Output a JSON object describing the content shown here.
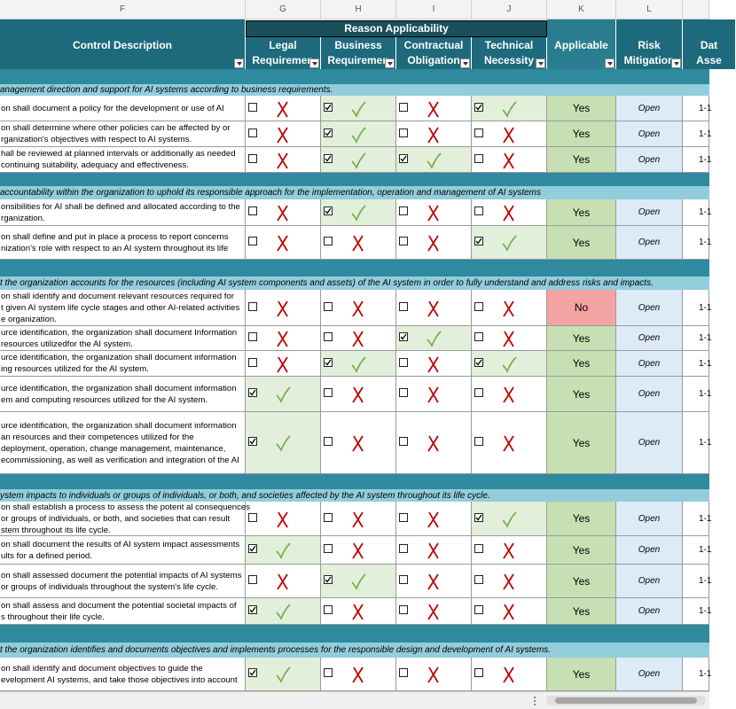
{
  "columns": [
    "F",
    "G",
    "H",
    "I",
    "J",
    "K",
    "L"
  ],
  "header": {
    "control": "Control Description",
    "group": "Reason Applicability",
    "cols": [
      [
        "Legal",
        "Requiremen"
      ],
      [
        "Business",
        "Requiremen"
      ],
      [
        "Contractual",
        "Obligation"
      ],
      [
        "Technical",
        "Necessity"
      ],
      [
        "Applicable",
        ""
      ],
      [
        "Risk",
        "Mitigation"
      ],
      [
        "Dat",
        "Asse"
      ]
    ]
  },
  "sections": [
    {
      "title": "anagement direction and support for AI systems according to business requirements.",
      "rows": [
        {
          "text": [
            "on shall document a policy for the development or use of AI"
          ],
          "reasons": [
            false,
            true,
            false,
            true
          ],
          "applicable": "Yes",
          "risk": "Open",
          "date": "1-1"
        },
        {
          "text": [
            "on shall determine where other policies can be affected by or",
            "rganization's objectives with respect to AI systems."
          ],
          "reasons": [
            false,
            true,
            false,
            false
          ],
          "applicable": "Yes",
          "risk": "Open",
          "date": "1-1"
        },
        {
          "text": [
            "hall be reviewed at planned intervals or additionally as needed",
            "continuing suitability, adequacy and effectiveness."
          ],
          "reasons": [
            false,
            true,
            true,
            false
          ],
          "applicable": "Yes",
          "risk": "Open",
          "date": "1-1"
        }
      ]
    },
    {
      "title": "accountability within the organization to uphold its responsible approach for the implementation, operation and management of AI systems",
      "rows": [
        {
          "text": [
            "onsibilities for AI shall be defined and allocated according to the",
            "rganization."
          ],
          "reasons": [
            false,
            true,
            false,
            false
          ],
          "applicable": "Yes",
          "risk": "Open",
          "date": "1-1"
        },
        {
          "text": [
            "on shall define and put in place a process to report concerns",
            "nization's role with respect to an AI system throughout its life"
          ],
          "reasons": [
            false,
            false,
            false,
            true
          ],
          "applicable": "Yes",
          "risk": "Open",
          "date": "1-1"
        }
      ]
    },
    {
      "title": "t the organization accounts for the resources (including AI system components and assets) of the AI system in order to fully understand and address risks and impacts.",
      "rows": [
        {
          "text": [
            "on shall identify and document relevant resources required for",
            "t given AI system life cycle stages and other AI-related activities",
            "e organization."
          ],
          "reasons": [
            false,
            false,
            false,
            false
          ],
          "applicable": "No",
          "risk": "Open",
          "date": "1-1"
        },
        {
          "text": [
            "urce identification, the organization shall document Information",
            "resources utilizedfor the AI system."
          ],
          "reasons": [
            false,
            false,
            true,
            false
          ],
          "applicable": "Yes",
          "risk": "Open",
          "date": "1-1"
        },
        {
          "text": [
            "urce identification, the organization shall document information",
            "ing resources utilized for the AI system."
          ],
          "reasons": [
            false,
            true,
            false,
            true
          ],
          "applicable": "Yes",
          "risk": "Open",
          "date": "1-1"
        },
        {
          "text": [
            "urce identification, the organization shall document information",
            "em and computing resources utilized for the AI system."
          ],
          "reasons": [
            true,
            false,
            false,
            false
          ],
          "applicable": "Yes",
          "risk": "Open",
          "date": "1-1"
        },
        {
          "text": [
            "urce identification, the organization shall document information",
            "an resources and their competences utilized for the",
            "deployment, operation, change management, maintenance,",
            "ecommissioning, as well as verification and integration of the AI"
          ],
          "reasons": [
            true,
            false,
            false,
            false
          ],
          "applicable": "Yes",
          "risk": "Open",
          "date": "1-1"
        }
      ]
    },
    {
      "title": "ystem impacts to individuals or groups of individuals, or both, and societies affected by the AI system throughout its life cycle.",
      "rows": [
        {
          "text": [
            "on shall establish a process to assess the potent al consequences",
            "or groups of individuals, or both, and societies that can result",
            "stem throughout its life cycle."
          ],
          "reasons": [
            false,
            false,
            false,
            true
          ],
          "applicable": "Yes",
          "risk": "Open",
          "date": "1-1"
        },
        {
          "text": [
            "on shall document the results of AI system impact assessments",
            "ults for a defined period."
          ],
          "reasons": [
            true,
            false,
            false,
            false
          ],
          "applicable": "Yes",
          "risk": "Open",
          "date": "1-1"
        },
        {
          "text": [
            "on shall assessed document the potential impacts of AI systems",
            "or groups of individuals throughout the system's life cycle."
          ],
          "reasons": [
            false,
            true,
            false,
            false
          ],
          "applicable": "Yes",
          "risk": "Open",
          "date": "1-1"
        },
        {
          "text": [
            "on shall assess and document the potential societal impacts of",
            "s throughout their life cycle."
          ],
          "reasons": [
            true,
            false,
            false,
            false
          ],
          "applicable": "Yes",
          "risk": "Open",
          "date": "1-1"
        }
      ]
    },
    {
      "title": "t the organization identifies  and documents objectives and implements processes for the responsible design and development of AI systems.",
      "rows": [
        {
          "text": [
            "on shall identify and document objectives to guide the",
            "evelopment AI systems, and take those objectives into account"
          ],
          "reasons": [
            true,
            false,
            false,
            false
          ],
          "applicable": "Yes",
          "risk": "Open",
          "date": "1-1"
        }
      ]
    }
  ]
}
